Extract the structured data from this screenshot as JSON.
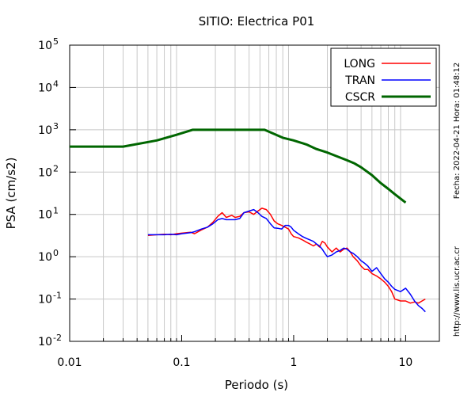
{
  "chart_data": {
    "type": "line",
    "title": "SITIO: Electrica P01",
    "xlabel": "Periodo (s)",
    "ylabel": "PSA (cm/s2)",
    "xscale": "log",
    "yscale": "log",
    "xlim": [
      0.01,
      20
    ],
    "ylim": [
      0.01,
      100000
    ],
    "grid": "vertical",
    "legend_position": "top-right",
    "x_tick_values": [
      0.01,
      0.1,
      1,
      10
    ],
    "x_tick_labels": [
      "0.01",
      "0.1",
      "1",
      "10"
    ],
    "y_ticks": [
      {
        "value": 0.01,
        "base": "10",
        "exp": "-2"
      },
      {
        "value": 0.1,
        "base": "10",
        "exp": "-1"
      },
      {
        "value": 1,
        "base": "10",
        "exp": "0"
      },
      {
        "value": 10,
        "base": "10",
        "exp": "1"
      },
      {
        "value": 100,
        "base": "10",
        "exp": "2"
      },
      {
        "value": 1000,
        "base": "10",
        "exp": "3"
      },
      {
        "value": 10000,
        "base": "10",
        "exp": "4"
      },
      {
        "value": 100000,
        "base": "10",
        "exp": "5"
      }
    ],
    "series": [
      {
        "name": "LONG",
        "color": "#ff0000",
        "points": [
          [
            0.05,
            3.2
          ],
          [
            0.06,
            3.3
          ],
          [
            0.07,
            3.4
          ],
          [
            0.08,
            3.3
          ],
          [
            0.09,
            3.5
          ],
          [
            0.1,
            3.6
          ],
          [
            0.12,
            3.8
          ],
          [
            0.13,
            3.5
          ],
          [
            0.15,
            4.3
          ],
          [
            0.17,
            5.0
          ],
          [
            0.19,
            6.5
          ],
          [
            0.21,
            9.0
          ],
          [
            0.23,
            11.0
          ],
          [
            0.25,
            8.5
          ],
          [
            0.28,
            9.5
          ],
          [
            0.3,
            8.5
          ],
          [
            0.33,
            9.0
          ],
          [
            0.36,
            11.0
          ],
          [
            0.4,
            11.5
          ],
          [
            0.44,
            10.0
          ],
          [
            0.48,
            12.0
          ],
          [
            0.52,
            14.0
          ],
          [
            0.57,
            13.0
          ],
          [
            0.62,
            10.0
          ],
          [
            0.67,
            7.0
          ],
          [
            0.72,
            6.0
          ],
          [
            0.78,
            5.5
          ],
          [
            0.84,
            5.0
          ],
          [
            0.9,
            4.5
          ],
          [
            0.95,
            3.5
          ],
          [
            1.0,
            3.0
          ],
          [
            1.1,
            2.8
          ],
          [
            1.2,
            2.5
          ],
          [
            1.3,
            2.2
          ],
          [
            1.4,
            2.0
          ],
          [
            1.5,
            1.8
          ],
          [
            1.6,
            2.0
          ],
          [
            1.7,
            1.7
          ],
          [
            1.8,
            2.3
          ],
          [
            1.9,
            2.1
          ],
          [
            2.0,
            1.7
          ],
          [
            2.2,
            1.3
          ],
          [
            2.4,
            1.6
          ],
          [
            2.6,
            1.3
          ],
          [
            2.8,
            1.5
          ],
          [
            3.0,
            1.6
          ],
          [
            3.2,
            1.3
          ],
          [
            3.4,
            1.0
          ],
          [
            3.7,
            0.8
          ],
          [
            4.0,
            0.6
          ],
          [
            4.3,
            0.5
          ],
          [
            4.6,
            0.5
          ],
          [
            5.0,
            0.4
          ],
          [
            5.5,
            0.35
          ],
          [
            6.0,
            0.3
          ],
          [
            6.5,
            0.25
          ],
          [
            7.0,
            0.2
          ],
          [
            7.5,
            0.15
          ],
          [
            8.0,
            0.1
          ],
          [
            9.0,
            0.09
          ],
          [
            10.0,
            0.09
          ],
          [
            11.0,
            0.08
          ],
          [
            12.0,
            0.085
          ],
          [
            13.0,
            0.08
          ],
          [
            14.0,
            0.09
          ],
          [
            15.0,
            0.1
          ]
        ]
      },
      {
        "name": "TRAN",
        "color": "#0000ff",
        "points": [
          [
            0.05,
            3.3
          ],
          [
            0.06,
            3.3
          ],
          [
            0.07,
            3.3
          ],
          [
            0.08,
            3.4
          ],
          [
            0.09,
            3.3
          ],
          [
            0.1,
            3.5
          ],
          [
            0.12,
            3.7
          ],
          [
            0.13,
            3.9
          ],
          [
            0.15,
            4.5
          ],
          [
            0.17,
            5.0
          ],
          [
            0.19,
            6.0
          ],
          [
            0.21,
            7.5
          ],
          [
            0.23,
            8.0
          ],
          [
            0.25,
            7.5
          ],
          [
            0.28,
            7.5
          ],
          [
            0.3,
            7.5
          ],
          [
            0.33,
            8.0
          ],
          [
            0.36,
            11.0
          ],
          [
            0.4,
            12.0
          ],
          [
            0.44,
            13.0
          ],
          [
            0.48,
            11.0
          ],
          [
            0.52,
            9.0
          ],
          [
            0.57,
            8.0
          ],
          [
            0.62,
            6.0
          ],
          [
            0.67,
            4.8
          ],
          [
            0.72,
            4.7
          ],
          [
            0.78,
            4.5
          ],
          [
            0.84,
            5.5
          ],
          [
            0.9,
            5.5
          ],
          [
            0.95,
            5.0
          ],
          [
            1.0,
            4.2
          ],
          [
            1.1,
            3.5
          ],
          [
            1.2,
            3.0
          ],
          [
            1.3,
            2.7
          ],
          [
            1.4,
            2.5
          ],
          [
            1.5,
            2.3
          ],
          [
            1.6,
            2.0
          ],
          [
            1.7,
            1.8
          ],
          [
            1.8,
            1.5
          ],
          [
            1.9,
            1.2
          ],
          [
            2.0,
            1.0
          ],
          [
            2.2,
            1.1
          ],
          [
            2.4,
            1.3
          ],
          [
            2.6,
            1.4
          ],
          [
            2.8,
            1.6
          ],
          [
            3.0,
            1.5
          ],
          [
            3.2,
            1.3
          ],
          [
            3.4,
            1.2
          ],
          [
            3.7,
            1.0
          ],
          [
            4.0,
            0.8
          ],
          [
            4.3,
            0.7
          ],
          [
            4.6,
            0.6
          ],
          [
            5.0,
            0.45
          ],
          [
            5.5,
            0.55
          ],
          [
            6.0,
            0.4
          ],
          [
            6.5,
            0.3
          ],
          [
            7.0,
            0.25
          ],
          [
            7.5,
            0.2
          ],
          [
            8.0,
            0.17
          ],
          [
            9.0,
            0.15
          ],
          [
            10.0,
            0.18
          ],
          [
            11.0,
            0.13
          ],
          [
            12.0,
            0.09
          ],
          [
            13.0,
            0.07
          ],
          [
            14.0,
            0.06
          ],
          [
            15.0,
            0.05
          ]
        ]
      },
      {
        "name": "CSCR",
        "color": "#006600",
        "points": [
          [
            0.01,
            400
          ],
          [
            0.03,
            400
          ],
          [
            0.06,
            560
          ],
          [
            0.09,
            760
          ],
          [
            0.125,
            1000
          ],
          [
            0.2,
            1000
          ],
          [
            0.3,
            1000
          ],
          [
            0.4,
            1000
          ],
          [
            0.55,
            1000
          ],
          [
            0.8,
            650
          ],
          [
            1.0,
            560
          ],
          [
            1.3,
            450
          ],
          [
            1.6,
            350
          ],
          [
            2.0,
            290
          ],
          [
            2.5,
            230
          ],
          [
            3.0,
            190
          ],
          [
            3.5,
            160
          ],
          [
            4.0,
            130
          ],
          [
            5.0,
            85
          ],
          [
            6.0,
            55
          ],
          [
            7.0,
            40
          ],
          [
            8.0,
            30
          ],
          [
            10.0,
            19
          ]
        ]
      }
    ]
  },
  "side_notes": {
    "timestamp": "Fecha: 2022-04-21 Hora: 01:48:12",
    "url": "http://www.lis.ucr.ac.cr"
  }
}
